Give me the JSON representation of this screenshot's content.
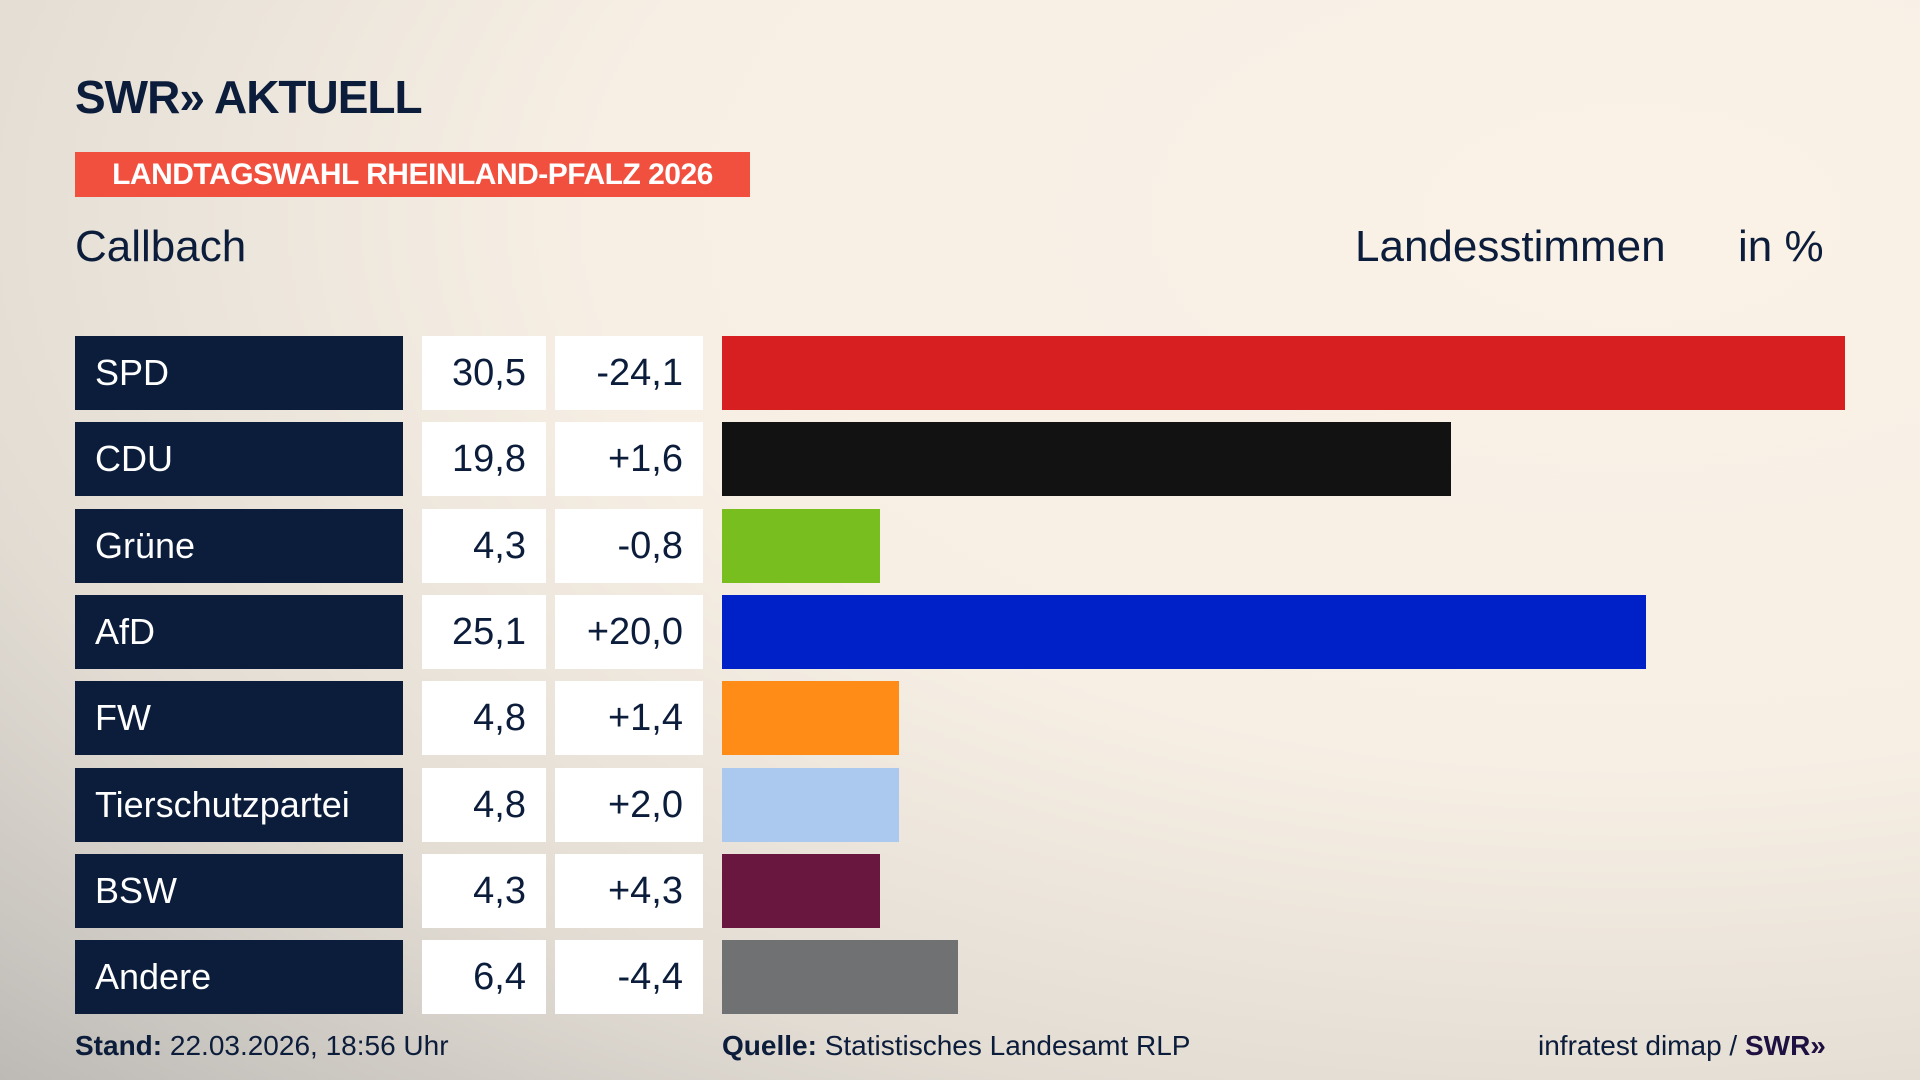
{
  "header": {
    "logo": "SWR» AKTUELL",
    "banner": "LANDTAGSWAHL RHEINLAND-PFALZ 2026",
    "place": "Callbach",
    "measure": "Landesstimmen",
    "unit": "in %"
  },
  "chart_data": {
    "type": "bar",
    "orientation": "horizontal",
    "categories": [
      "SPD",
      "CDU",
      "Grüne",
      "AfD",
      "FW",
      "Tierschutzpartei",
      "BSW",
      "Andere"
    ],
    "values": [
      30.5,
      19.8,
      4.3,
      25.1,
      4.8,
      4.8,
      4.3,
      6.4
    ],
    "values_label": [
      "30,5",
      "19,8",
      "4,3",
      "25,1",
      "4,8",
      "4,8",
      "4,3",
      "6,4"
    ],
    "diff": [
      "-24,1",
      "+1,6",
      "-0,8",
      "+20,0",
      "+1,4",
      "+2,0",
      "+4,3",
      "-4,4"
    ],
    "colors": [
      "#d71f22",
      "#121212",
      "#78be1e",
      "#0021c8",
      "#ff8c17",
      "#abc9ef",
      "#6a1740",
      "#707172"
    ],
    "xlim": [
      0,
      30.5
    ]
  },
  "footer": {
    "stand_label": "Stand:",
    "stand": "22.03.2026, 18:56 Uhr",
    "source_label": "Quelle:",
    "source": "Statistisches Landesamt RLP",
    "credit": "infratest dimap / ",
    "credit_logo": "SWR»"
  }
}
